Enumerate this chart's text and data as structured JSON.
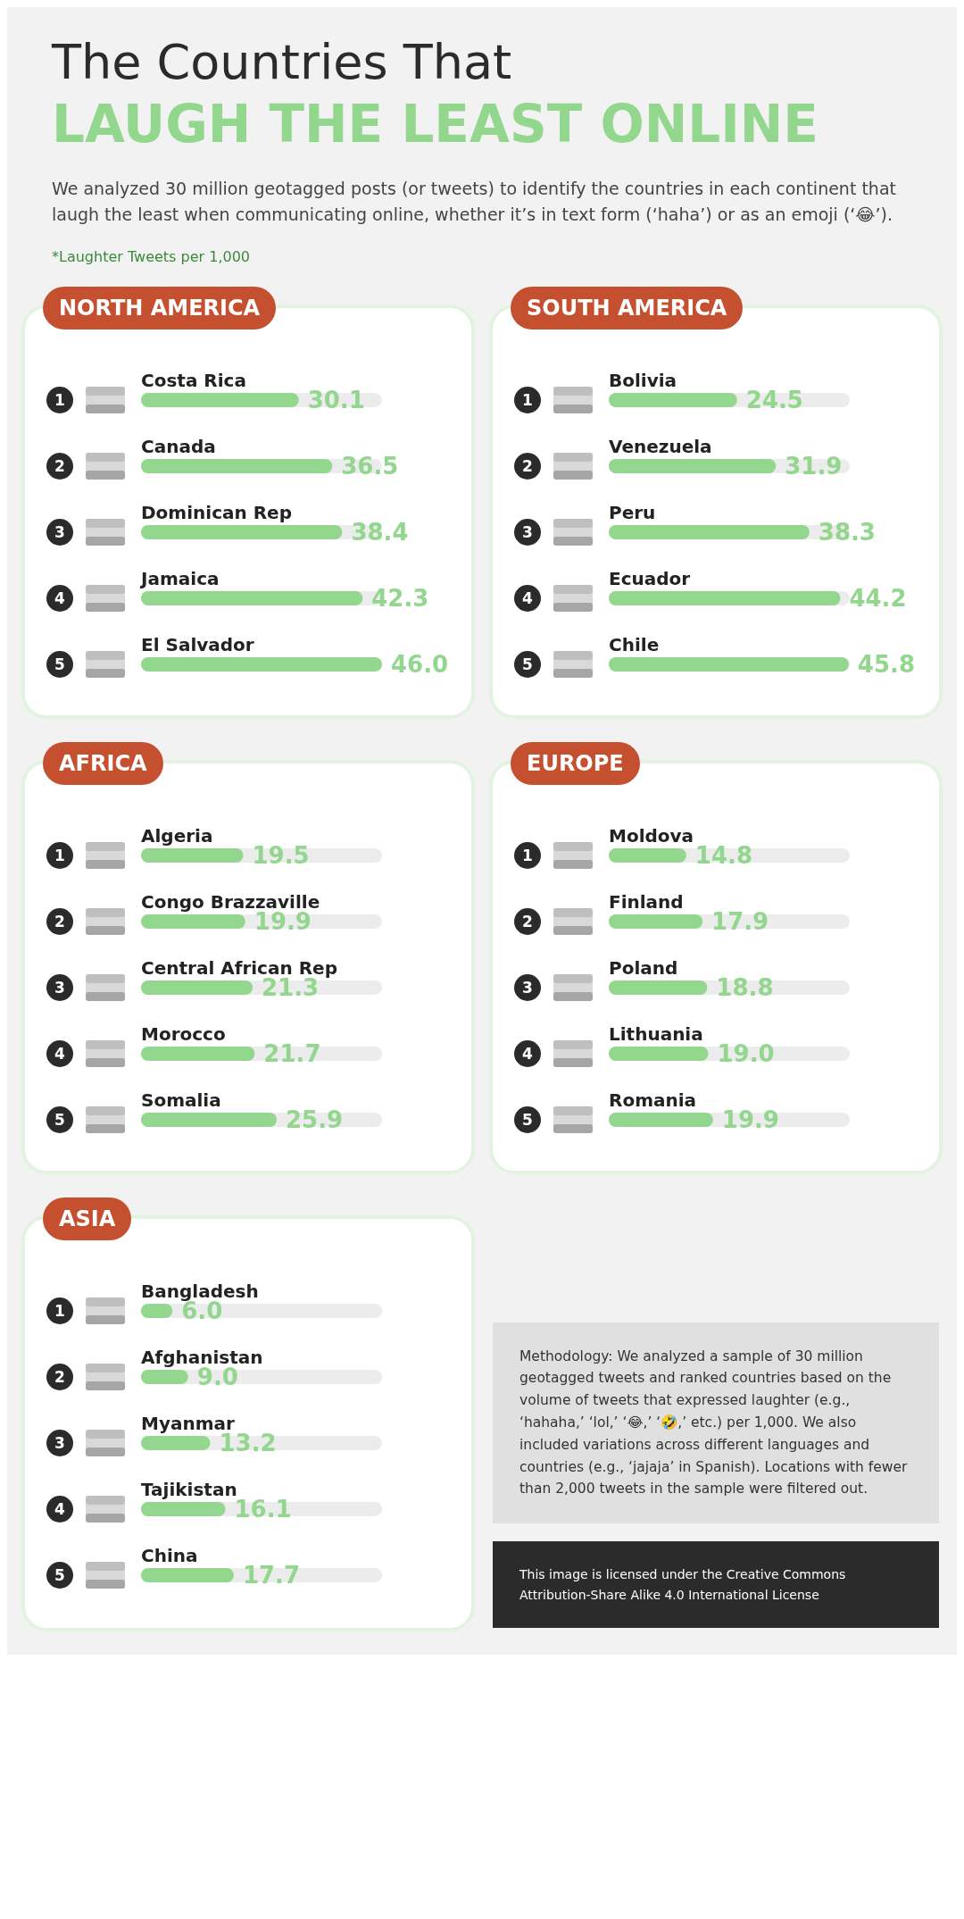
{
  "chart_data": [
    {
      "type": "other",
      "title": "The Countries That",
      "subtitle": "LAUGH THE LEAST ONLINE",
      "annotations": [
        "We analyzed 30 million geotagged posts (or tweets) to identify the countries in each continent that laugh the least when communicating online, whether it’s in text form (‘haha’) or as an emoji (‘😂’).",
        "*Laughter Tweets per 1,000"
      ]
    },
    {
      "type": "bar",
      "orientation": "horizontal",
      "title": "NORTH AMERICA",
      "color": "#93d68e",
      "categories": [
        "Costa Rica",
        "Canada",
        "Dominican Rep",
        "Jamaica",
        "El Salvador"
      ],
      "values": [
        30.1,
        36.5,
        38.4,
        42.3,
        46.0
      ],
      "value_labels": [
        "30.1",
        "36.5",
        "38.4",
        "42.3",
        "46.0"
      ],
      "annotations": [
        "1",
        "2",
        "3",
        "4",
        "5"
      ]
    },
    {
      "type": "bar",
      "orientation": "horizontal",
      "title": "SOUTH AMERICA",
      "color": "#93d68e",
      "categories": [
        "Bolivia",
        "Venezuela",
        "Peru",
        "Ecuador",
        "Chile"
      ],
      "values": [
        24.5,
        31.9,
        38.3,
        44.2,
        45.8
      ],
      "value_labels": [
        "24.5",
        "31.9",
        "38.3",
        "44.2",
        "45.8"
      ],
      "annotations": [
        "1",
        "2",
        "3",
        "4",
        "5"
      ]
    },
    {
      "type": "bar",
      "orientation": "horizontal",
      "title": "AFRICA",
      "color": "#93d68e",
      "categories": [
        "Algeria",
        "Congo Brazzaville",
        "Central African Rep",
        "Morocco",
        "Somalia"
      ],
      "values": [
        19.5,
        19.9,
        21.3,
        21.7,
        25.9
      ],
      "value_labels": [
        "19.5",
        "19.9",
        "21.3",
        "21.7",
        "25.9"
      ],
      "annotations": [
        "1",
        "2",
        "3",
        "4",
        "5"
      ]
    },
    {
      "type": "bar",
      "orientation": "horizontal",
      "title": "EUROPE",
      "color": "#93d68e",
      "categories": [
        "Moldova",
        "Finland",
        "Poland",
        "Lithuania",
        "Romania"
      ],
      "values": [
        14.8,
        17.9,
        18.8,
        19.0,
        19.9
      ],
      "value_labels": [
        "14.8",
        "17.9",
        "18.8",
        "19.0",
        "19.9"
      ],
      "annotations": [
        "1",
        "2",
        "3",
        "4",
        "5"
      ]
    },
    {
      "type": "bar",
      "orientation": "horizontal",
      "title": "ASIA",
      "color": "#93d68e",
      "categories": [
        "Bangladesh",
        "Afghanistan",
        "Myanmar",
        "Tajikistan",
        "China"
      ],
      "values": [
        6.0,
        9.0,
        13.2,
        16.1,
        17.7
      ],
      "value_labels": [
        "6.0",
        "9.0",
        "13.2",
        "16.1",
        "17.7"
      ],
      "annotations": [
        "1",
        "2",
        "3",
        "4",
        "5"
      ]
    },
    {
      "type": "other",
      "annotations": [
        "Methodology: We analyzed a sample of 30 million geotagged tweets and ranked countries based on the volume of tweets that expressed laughter (e.g., ‘hahaha,’ ‘lol,’ ‘😂,’ ‘🤣,’ etc.) per 1,000. We also included variations across different languages and countries (e.g., ‘jajaja’ in Spanish). Locations with fewer than 2,000 tweets in the sample were filtered out.",
        "This image is licensed under the Creative Commons Attribution-Share Alike 4.0 International License"
      ]
    }
  ]
}
